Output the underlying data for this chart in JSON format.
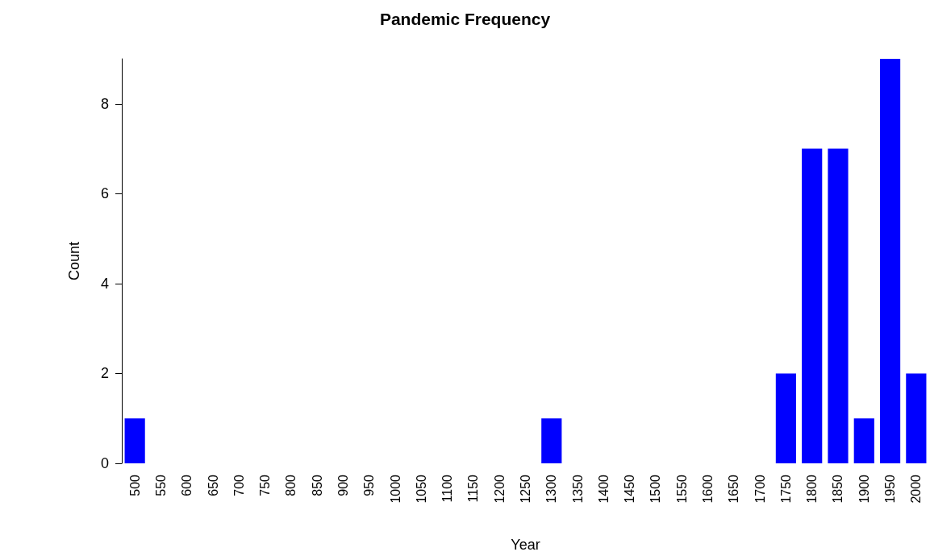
{
  "chart_data": {
    "type": "bar",
    "title": "Pandemic Frequency",
    "xlabel": "Year",
    "ylabel": "Count",
    "categories": [
      "500",
      "550",
      "600",
      "650",
      "700",
      "750",
      "800",
      "850",
      "900",
      "950",
      "1000",
      "1050",
      "1100",
      "1150",
      "1200",
      "1250",
      "1300",
      "1350",
      "1400",
      "1450",
      "1500",
      "1550",
      "1600",
      "1650",
      "1700",
      "1750",
      "1800",
      "1850",
      "1900",
      "1950",
      "2000"
    ],
    "values": [
      1,
      0,
      0,
      0,
      0,
      0,
      0,
      0,
      0,
      0,
      0,
      0,
      0,
      0,
      0,
      0,
      1,
      0,
      0,
      0,
      0,
      0,
      0,
      0,
      0,
      2,
      7,
      7,
      1,
      9,
      2
    ],
    "color": "#0000ff",
    "ylim": [
      0,
      9
    ],
    "yticks": [
      0,
      2,
      4,
      6,
      8
    ],
    "grid": false,
    "legend": false
  }
}
